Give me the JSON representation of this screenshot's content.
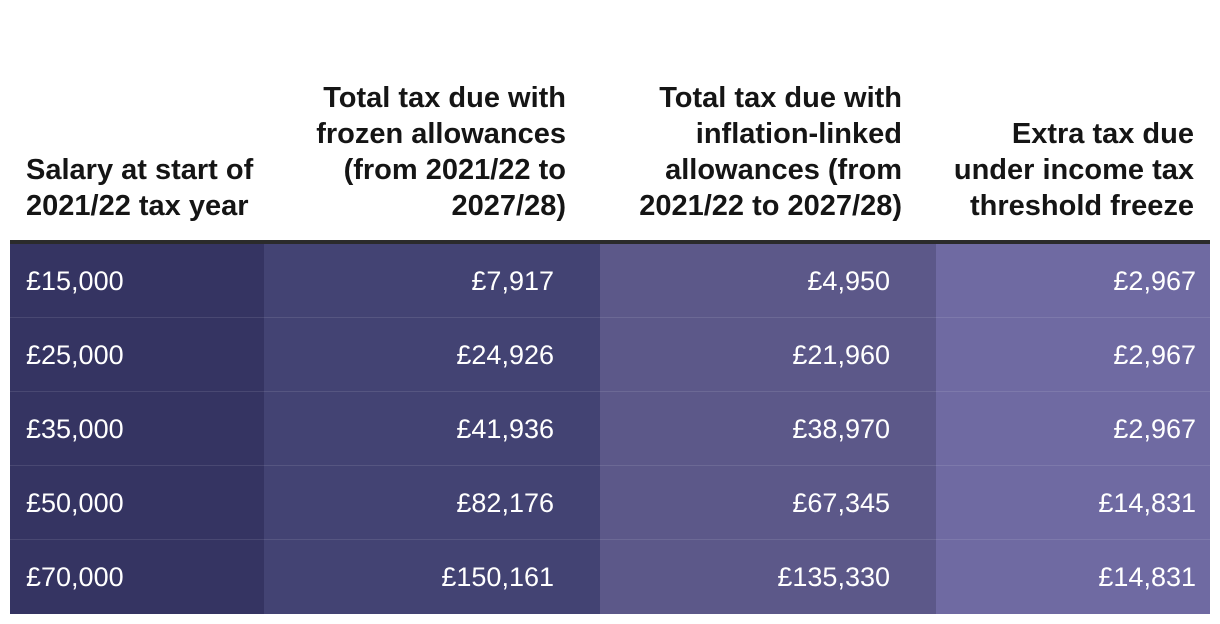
{
  "table": {
    "headers": [
      "Salary at start of 2021/22 tax year",
      "Total tax due with frozen allowances (from 2021/22 to 2027/28)",
      "Total tax due with inflation-linked allowances (from 2021/22 to 2027/28)",
      "Extra tax due under income tax threshold freeze"
    ],
    "rows": [
      [
        "£15,000",
        "£7,917",
        "£4,950",
        "£2,967"
      ],
      [
        "£25,000",
        "£24,926",
        "£21,960",
        "£2,967"
      ],
      [
        "£35,000",
        "£41,936",
        "£38,970",
        "£2,967"
      ],
      [
        "£50,000",
        "£82,176",
        "£67,345",
        "£14,831"
      ],
      [
        "£70,000",
        "£150,161",
        "£135,330",
        "£14,831"
      ]
    ]
  },
  "colors": {
    "col_salary": "#353462",
    "col_frozen": "#434373",
    "col_inflation": "#5c5889",
    "col_extra": "#6f6aa2",
    "header_rule": "#2b2b2b"
  }
}
